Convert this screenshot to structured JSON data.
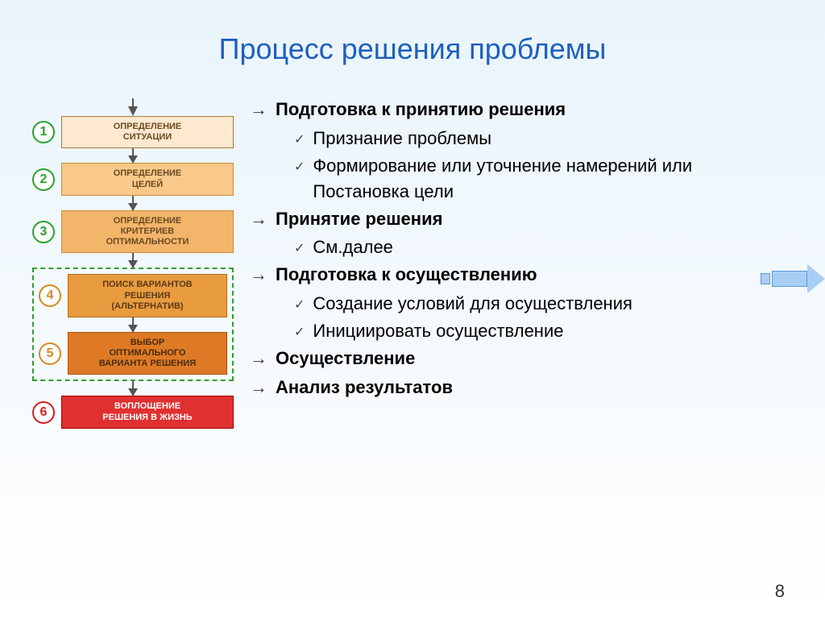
{
  "background_gradient": {
    "from": "#e9f4fc",
    "to": "#ffffff"
  },
  "title": {
    "text": "Процесс решения проблемы",
    "color": "#1f5fbf"
  },
  "page_number": "8",
  "flowchart": {
    "steps": [
      {
        "num": "1",
        "label": "ОПРЕДЕЛЕНИЕ\nСИТУАЦИИ",
        "num_border": "#2ca02c",
        "num_color": "#2ca02c",
        "box_border": "#a97c3b",
        "box_bg": "#fde9cf",
        "box_text": "#6b4a22"
      },
      {
        "num": "2",
        "label": "ОПРЕДЕЛЕНИЕ\nЦЕЛЕЙ",
        "num_border": "#2ca02c",
        "num_color": "#2ca02c",
        "box_border": "#c78a3e",
        "box_bg": "#f8c98a",
        "box_text": "#6b4a22"
      },
      {
        "num": "3",
        "label": "ОПРЕДЕЛЕНИЕ\nКРИТЕРИЕВ\nОПТИМАЛЬНОСТИ",
        "num_border": "#2ca02c",
        "num_color": "#2ca02c",
        "box_border": "#c78a3e",
        "box_bg": "#f3b56a",
        "box_text": "#6b4a22"
      },
      {
        "num": "4",
        "label": "ПОИСК ВАРИАНТОВ\nРЕШЕНИЯ\n(АЛЬТЕРНАТИВ)",
        "num_border": "#d68a1f",
        "num_color": "#d68a1f",
        "box_border": "#b56a1f",
        "box_bg": "#e99b3f",
        "box_text": "#5a3a14"
      },
      {
        "num": "5",
        "label": "ВЫБОР\nОПТИМАЛЬНОГО\nВАРИАНТА РЕШЕНИЯ",
        "num_border": "#d68a1f",
        "num_color": "#d68a1f",
        "box_border": "#a65212",
        "box_bg": "#de7a26",
        "box_text": "#4a2c0e"
      },
      {
        "num": "6",
        "label": "ВОПЛОЩЕНИЕ\nРЕШЕНИЯ В ЖИЗНЬ",
        "num_border": "#d22020",
        "num_color": "#d22020",
        "box_border": "#a00000",
        "box_bg": "#e03030",
        "box_text": "#ffffff"
      }
    ],
    "dashed_group_indices": [
      3,
      4
    ],
    "dashed_border": "#2ca02c"
  },
  "bullets": [
    {
      "level": 1,
      "text": "Подготовка к принятию решения"
    },
    {
      "level": 2,
      "text": "Признание проблемы"
    },
    {
      "level": 2,
      "text": "Формирование или уточнение намерений или Постановка цели"
    },
    {
      "level": 1,
      "text": "Принятие решения"
    },
    {
      "level": 2,
      "text": "См.далее"
    },
    {
      "level": 1,
      "text": "Подготовка к осуществлению"
    },
    {
      "level": 2,
      "text": "Создание условий для осуществления"
    },
    {
      "level": 2,
      "text": "Инициировать осуществление"
    },
    {
      "level": 1,
      "text": "Осуществление"
    },
    {
      "level": 1,
      "text": "Анализ результатов"
    }
  ],
  "right_arrow": {
    "fill": "#a9cef4",
    "stroke": "#5b9bd5"
  }
}
